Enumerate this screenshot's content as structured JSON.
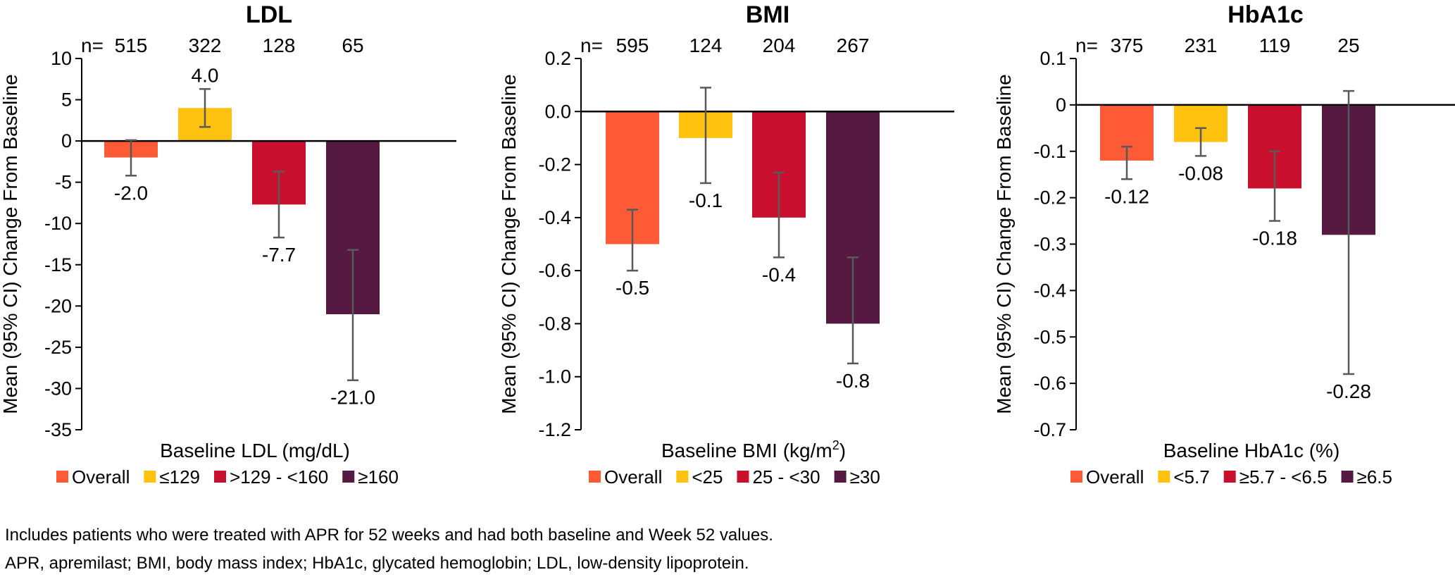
{
  "chart_data": [
    {
      "type": "bar",
      "title": "LDL",
      "ylabel": "Mean (95% CI) Change From Baseline",
      "xlabel": "Baseline LDL (mg/dL)",
      "ylim": [
        -35,
        10
      ],
      "yticks": [
        10,
        5,
        0,
        -5,
        -10,
        -15,
        -20,
        -25,
        -30,
        -35
      ],
      "ytick_decimals": 0,
      "n_label": "n=",
      "categories": [
        "Overall",
        "≤129",
        ">129 - <160",
        "≥160"
      ],
      "n": [
        515,
        322,
        128,
        65
      ],
      "values": [
        -2.0,
        4.0,
        -7.7,
        -21.0
      ],
      "value_labels": [
        "-2.0",
        "4.0",
        "-7.7",
        "-21.0"
      ],
      "ci_low": [
        -4.2,
        1.7,
        -11.7,
        -29.0
      ],
      "ci_high": [
        0.1,
        6.3,
        -3.7,
        -13.2
      ],
      "legend": [
        "Overall",
        "≤129",
        ">129 - <160",
        "≥160"
      ],
      "legend_position": "bottom",
      "grid": false
    },
    {
      "type": "bar",
      "title": "BMI",
      "ylabel": "Mean (95% CI) Change From Baseline",
      "xlabel": "Baseline BMI (kg/m",
      "xlabel_sup": "2",
      "xlabel_suffix": ")",
      "ylim": [
        -1.2,
        0.2
      ],
      "yticks": [
        0.2,
        0.0,
        -0.2,
        -0.4,
        -0.6,
        -0.8,
        -1.0,
        -1.2
      ],
      "ytick_decimals": 1,
      "n_label": "n=",
      "categories": [
        "Overall",
        "<25",
        "25 - <30",
        "≥30"
      ],
      "n": [
        595,
        124,
        204,
        267
      ],
      "values": [
        -0.5,
        -0.1,
        -0.4,
        -0.8
      ],
      "value_labels": [
        "-0.5",
        "-0.1",
        "-0.4",
        "-0.8"
      ],
      "ci_low": [
        -0.6,
        -0.27,
        -0.55,
        -0.95
      ],
      "ci_high": [
        -0.37,
        0.09,
        -0.23,
        -0.55
      ],
      "legend": [
        "Overall",
        "<25",
        "25 - <30",
        "≥30"
      ],
      "legend_position": "bottom",
      "grid": false
    },
    {
      "type": "bar",
      "title": "HbA1c",
      "ylabel": "Mean (95% CI) Change From Baseline",
      "xlabel": "Baseline HbA1c (%)",
      "ylim": [
        -0.7,
        0.1
      ],
      "yticks": [
        0.1,
        0,
        -0.1,
        -0.2,
        -0.3,
        -0.4,
        -0.5,
        -0.6,
        -0.7
      ],
      "ytick_decimals": 1,
      "zero_tick_label": "0",
      "n_label": "n=",
      "categories": [
        "Overall",
        "<5.7",
        "≥5.7 - <6.5",
        "≥6.5"
      ],
      "n": [
        375,
        231,
        119,
        25
      ],
      "values": [
        -0.12,
        -0.08,
        -0.18,
        -0.28
      ],
      "value_labels": [
        "-0.12",
        "-0.08",
        "-0.18",
        "-0.28"
      ],
      "ci_low": [
        -0.16,
        -0.11,
        -0.25,
        -0.58
      ],
      "ci_high": [
        -0.09,
        -0.05,
        -0.1,
        0.03
      ],
      "legend": [
        "Overall",
        "<5.7",
        "≥5.7 - <6.5",
        "≥6.5"
      ],
      "legend_position": "bottom",
      "grid": false
    }
  ],
  "colors": {
    "overall": "#FF5A36",
    "low": "#FFC20E",
    "mid": "#C8102E",
    "high": "#561A42",
    "error_bar": "#595959"
  },
  "footnotes": [
    "Includes patients who were treated with APR for 52 weeks and had both baseline and Week 52 values.",
    "APR, apremilast; BMI, body mass index; HbA1c, glycated hemoglobin; LDL, low-density lipoprotein."
  ]
}
